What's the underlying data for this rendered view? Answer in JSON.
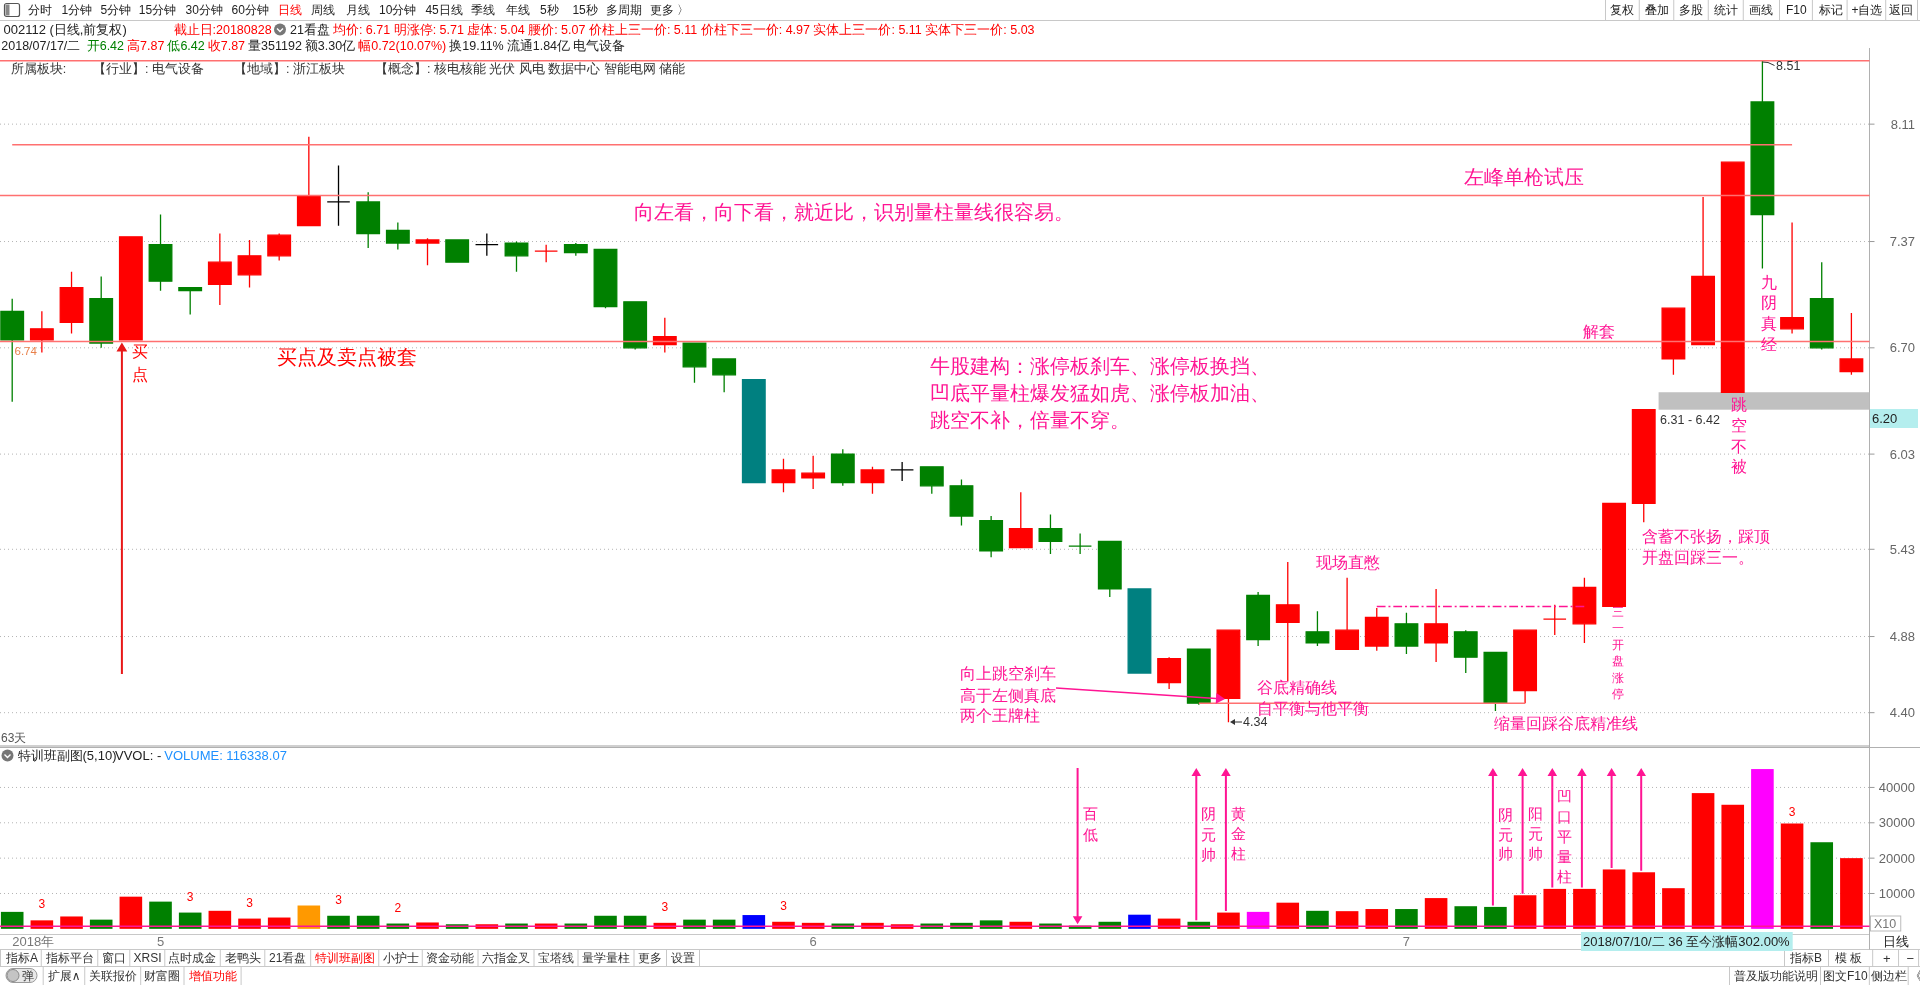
{
  "chart_data": [
    {
      "type": "candlestick",
      "title": "002112 (日线,前复权)",
      "categories": [
        null,
        null,
        null,
        null,
        null,
        null,
        null,
        null,
        null,
        null,
        null,
        null,
        null,
        null,
        null,
        null,
        null,
        null,
        null,
        null,
        null,
        null,
        null,
        null,
        null,
        null,
        null,
        null,
        null,
        null,
        null,
        null,
        null,
        null,
        null,
        null,
        null,
        null,
        null,
        null,
        null,
        null,
        null,
        null,
        null,
        null,
        null,
        null,
        null,
        null,
        null,
        null,
        null,
        null,
        null,
        null,
        null,
        null,
        null,
        null,
        null,
        null,
        null
      ],
      "ohlc": [
        [
          6.93,
          7.01,
          6.36,
          6.75
        ],
        [
          6.75,
          6.93,
          6.67,
          6.82
        ],
        [
          6.86,
          7.18,
          6.79,
          7.08
        ],
        [
          7.01,
          7.15,
          6.7,
          6.73
        ],
        [
          6.75,
          7.4,
          6.75,
          7.4
        ],
        [
          7.35,
          7.54,
          7.06,
          7.12
        ],
        [
          7.08,
          7.08,
          6.91,
          7.06
        ],
        [
          7.1,
          7.42,
          6.97,
          7.24
        ],
        [
          7.16,
          7.38,
          7.08,
          7.28
        ],
        [
          7.28,
          7.42,
          7.25,
          7.41
        ],
        [
          7.47,
          8.03,
          7.47,
          7.66
        ],
        [
          7.62,
          7.85,
          7.47,
          7.62
        ],
        [
          7.62,
          7.68,
          7.33,
          7.42
        ],
        [
          7.44,
          7.49,
          7.32,
          7.36
        ],
        [
          7.36,
          7.39,
          7.22,
          7.38
        ],
        [
          7.38,
          7.38,
          7.24,
          7.24
        ],
        [
          7.35,
          7.42,
          7.28,
          7.35
        ],
        [
          7.36,
          7.37,
          7.18,
          7.28
        ],
        [
          7.31,
          7.35,
          7.24,
          7.31
        ],
        [
          7.35,
          7.36,
          7.28,
          7.3
        ],
        [
          7.32,
          7.32,
          6.95,
          6.96
        ],
        [
          6.99,
          6.99,
          6.69,
          6.7
        ],
        [
          6.72,
          6.89,
          6.67,
          6.77
        ],
        [
          6.73,
          6.73,
          6.48,
          6.58
        ],
        [
          6.63,
          6.63,
          6.42,
          6.53
        ],
        [
          6.5,
          6.5,
          5.85,
          5.85
        ],
        [
          5.85,
          6.0,
          5.79,
          5.93
        ],
        [
          5.88,
          6.02,
          5.81,
          5.91
        ],
        [
          6.03,
          6.06,
          5.83,
          5.85
        ],
        [
          5.85,
          5.95,
          5.78,
          5.93
        ],
        [
          5.93,
          5.98,
          5.86,
          5.93
        ],
        [
          5.95,
          5.95,
          5.78,
          5.83
        ],
        [
          5.83,
          5.87,
          5.58,
          5.64
        ],
        [
          5.61,
          5.64,
          5.38,
          5.42
        ],
        [
          5.44,
          5.79,
          5.44,
          5.56
        ],
        [
          5.56,
          5.65,
          5.4,
          5.48
        ],
        [
          5.45,
          5.53,
          5.4,
          5.45
        ],
        [
          5.48,
          5.48,
          5.13,
          5.18
        ],
        [
          5.18,
          5.18,
          4.65,
          4.65
        ],
        [
          4.59,
          4.75,
          4.55,
          4.74
        ],
        [
          4.8,
          4.8,
          4.45,
          4.46
        ],
        [
          4.49,
          4.92,
          4.34,
          4.92
        ],
        [
          5.14,
          5.16,
          4.82,
          4.86
        ],
        [
          4.97,
          5.35,
          4.6,
          5.08
        ],
        [
          4.91,
          5.04,
          4.82,
          4.84
        ],
        [
          4.8,
          5.25,
          4.8,
          4.92
        ],
        [
          4.82,
          5.06,
          4.79,
          5.0
        ],
        [
          4.96,
          5.03,
          4.77,
          4.82
        ],
        [
          4.84,
          5.18,
          4.72,
          4.96
        ],
        [
          4.91,
          4.92,
          4.65,
          4.75
        ],
        [
          4.78,
          4.78,
          4.41,
          4.46
        ],
        [
          4.54,
          4.92,
          4.46,
          4.92
        ],
        [
          4.99,
          5.08,
          4.89,
          4.99
        ],
        [
          4.96,
          5.25,
          4.84,
          5.19
        ],
        [
          5.07,
          5.72,
          5.07,
          5.72
        ],
        [
          5.72,
          6.31,
          5.6,
          6.31
        ],
        [
          6.63,
          6.95,
          6.53,
          6.95
        ],
        [
          6.72,
          7.65,
          6.72,
          7.15
        ],
        [
          6.42,
          7.87,
          6.42,
          7.87
        ],
        [
          8.25,
          8.51,
          7.2,
          7.54
        ],
        [
          6.82,
          7.49,
          6.79,
          6.89
        ],
        [
          7.01,
          7.24,
          6.69,
          6.7
        ],
        [
          6.55,
          6.92,
          6.53,
          6.63
        ]
      ],
      "colors": [
        "#008000",
        "#ff0000",
        "#ff0000",
        "#008000",
        "#ff0000",
        "#008000",
        "#008000",
        "#ff0000",
        "#ff0000",
        "#ff0000",
        "#ff0000",
        "#000000",
        "#008000",
        "#008000",
        "#ff0000",
        "#008000",
        "#000000",
        "#008000",
        "#ff0000",
        "#008000",
        "#008000",
        "#008000",
        "#ff0000",
        "#008000",
        "#008000",
        "#008080",
        "#ff0000",
        "#ff0000",
        "#008000",
        "#ff0000",
        "#000000",
        "#008000",
        "#008000",
        "#008000",
        "#ff0000",
        "#008000",
        "#008000",
        "#008000",
        "#008080",
        "#ff0000",
        "#008000",
        "#ff0000",
        "#008000",
        "#ff0000",
        "#008000",
        "#ff0000",
        "#ff0000",
        "#008000",
        "#ff0000",
        "#008000",
        "#008000",
        "#ff0000",
        "#ff0000",
        "#ff0000",
        "#ff0000",
        "#ff0000",
        "#ff0000",
        "#ff0000",
        "#ff0000",
        "#008000",
        "#ff0000",
        "#008000",
        "#ff0000"
      ],
      "ylim": [
        4.19,
        8.59
      ],
      "yticks": [
        {
          "value": 4.4,
          "label": "4.40"
        },
        4.88,
        5.43,
        6.03,
        {
          "value": 6.7,
          "label": "6.70"
        },
        7.37,
        8.11
      ],
      "grid": "y",
      "tick_labels": "y",
      "ref_lines": [
        {
          "axis": "y",
          "value": 8.51,
          "color": "#ff7070"
        },
        {
          "axis": "y",
          "value": 7.66,
          "label": "左峰单枪试压",
          "color": "#ff7070"
        },
        {
          "axis": "y",
          "value": 6.74,
          "label": "6.74",
          "color": "#ff7070"
        }
      ],
      "bands": [
        {
          "axis": "y",
          "from": 6.31,
          "to": 6.42,
          "label": "6.31 - 6.42",
          "color": "#c0c0c0"
        }
      ],
      "series": [
        {
          "type": "line",
          "color": "#ff7070",
          "values": [
            7.98,
            7.98,
            7.98,
            7.98,
            7.98,
            7.98,
            7.98,
            7.98,
            7.98,
            7.98,
            7.98,
            7.98,
            7.98,
            7.98,
            7.98,
            7.98,
            7.98,
            7.98,
            7.98,
            7.98,
            7.98,
            7.98,
            7.98,
            7.98,
            7.98,
            7.98,
            7.98,
            7.98,
            7.98,
            7.98,
            7.98,
            7.98,
            7.98,
            7.98,
            7.98,
            7.98,
            7.98,
            7.98,
            7.98,
            7.98,
            7.98,
            7.98,
            7.98,
            7.98,
            7.98,
            7.98,
            7.98,
            7.98,
            7.98,
            7.98,
            7.98,
            7.98,
            7.98,
            7.98,
            7.98,
            7.98,
            7.98,
            7.98,
            7.98,
            7.98,
            7.98,
            null,
            null
          ]
        },
        {
          "type": "line",
          "color": "#ff7070",
          "values": [
            null,
            null,
            null,
            null,
            null,
            null,
            null,
            null,
            null,
            null,
            null,
            null,
            null,
            null,
            null,
            null,
            null,
            null,
            null,
            null,
            null,
            null,
            null,
            null,
            null,
            null,
            null,
            null,
            null,
            null,
            null,
            null,
            null,
            null,
            null,
            null,
            null,
            null,
            null,
            null,
            4.46,
            4.46,
            4.46,
            4.46,
            4.46,
            4.46,
            4.46,
            4.46,
            4.46,
            4.46,
            4.46,
            4.46,
            null,
            null,
            null,
            null,
            null,
            null,
            null,
            null,
            null,
            null,
            null
          ]
        },
        {
          "type": "line",
          "color": "#ff1493",
          "line_style": "dashed",
          "values": [
            null,
            null,
            null,
            null,
            null,
            null,
            null,
            null,
            null,
            null,
            null,
            null,
            null,
            null,
            null,
            null,
            null,
            null,
            null,
            null,
            null,
            null,
            null,
            null,
            null,
            null,
            null,
            null,
            null,
            null,
            null,
            null,
            null,
            null,
            null,
            null,
            null,
            null,
            null,
            null,
            null,
            null,
            null,
            null,
            null,
            null,
            5.07,
            5.07,
            5.07,
            5.07,
            5.07,
            5.07,
            5.07,
            5.07,
            null,
            null,
            null,
            null,
            null,
            null,
            null,
            null,
            null
          ]
        }
      ],
      "annotations": [
        "分时",
        "1分钟",
        "5分钟",
        "15分钟",
        "30分钟",
        "60分钟",
        "日线",
        "周线",
        "月线",
        "10分钟",
        "45日线",
        "季线",
        "年线",
        "5秒",
        "15秒",
        "多周期",
        "更多 〉",
        "复权",
        "叠加",
        "多股",
        "统计",
        "画线",
        "F10",
        "标记",
        "+自选",
        "返回",
        "截止日:20180828",
        "21看盘",
        "均价: 6.71 明涨停: 5.71 虚体: 5.04 腰价: 5.07 价柱上三一价: 5.11 价柱下三一价: 4.97 实体上三一价: 5.11 实体下三一价: 5.03",
        "2018/07/17/二",
        "开6.42",
        "高7.87",
        "低6.42",
        "收7.87",
        "量351192",
        "额3.30亿",
        "幅0.72(10.07%)",
        "换19.11%",
        "流通1.84亿",
        "电气设备",
        "所属板块:",
        "【行业】: 电气设备",
        "【地域】: 浙江板块",
        "【概念】: 核电核能 光伏 风电 数据中心 智能电网 储能",
        "买点",
        "买点及卖点被套",
        "向左看，向下看，就近比，识别量柱量线很容易。",
        "牛股建构：涨停板刹车、涨停板换挡、",
        "凹底平量柱爆发猛如虎、涨停板加油、",
        "跳空不补，倍量不穿。",
        "向上跳空刹车",
        "高于左侧真底",
        "两个王牌柱",
        "4.34",
        "谷底精确线",
        "自平衡与他平衡",
        "现场直憋",
        "缩量回踩谷底精准线",
        "三一开盘涨停",
        "含蓄不张扬，踩顶",
        "开盘回踩三一。",
        "跳空不被",
        "九阴真经",
        "解套",
        "8.51",
        "6.20",
        "63天"
      ]
    },
    {
      "type": "bar",
      "title": "特训班副图(5,10)",
      "categories": [
        null,
        null,
        null,
        null,
        null,
        "5",
        null,
        null,
        null,
        null,
        null,
        null,
        null,
        null,
        null,
        null,
        null,
        null,
        null,
        null,
        null,
        null,
        null,
        null,
        null,
        null,
        null,
        "6",
        null,
        null,
        null,
        null,
        null,
        null,
        null,
        null,
        null,
        null,
        null,
        null,
        null,
        null,
        null,
        null,
        null,
        null,
        null,
        "7",
        null,
        null,
        null,
        null,
        null,
        null,
        null,
        null,
        null,
        null,
        null,
        null,
        null,
        null,
        null
      ],
      "values": [
        4800,
        2400,
        3500,
        2600,
        9100,
        7700,
        4600,
        5100,
        2900,
        3200,
        6600,
        3700,
        3700,
        1500,
        1800,
        1300,
        1300,
        1500,
        1500,
        1500,
        3700,
        3700,
        1700,
        2600,
        2600,
        3900,
        2000,
        1700,
        1500,
        1700,
        1300,
        1500,
        1700,
        2400,
        2000,
        1500,
        900,
        2000,
        4000,
        2900,
        2000,
        4600,
        4800,
        7400,
        5100,
        5000,
        5600,
        5600,
        8700,
        6400,
        6200,
        9500,
        11300,
        11300,
        16800,
        16000,
        11500,
        38400,
        35100,
        45200,
        29800,
        24500,
        20000
      ],
      "colors": [
        "#008000",
        "#ff0000",
        "#ff0000",
        "#008000",
        "#ff0000",
        "#008000",
        "#008000",
        "#ff0000",
        "#ff0000",
        "#ff0000",
        "#ff9900",
        "#008000",
        "#008000",
        "#008000",
        "#ff0000",
        "#008000",
        "#ff0000",
        "#008000",
        "#ff0000",
        "#008000",
        "#008000",
        "#008000",
        "#ff0000",
        "#008000",
        "#008000",
        "#0000ff",
        "#ff0000",
        "#ff0000",
        "#008000",
        "#ff0000",
        "#ff0000",
        "#008000",
        "#008000",
        "#008000",
        "#ff0000",
        "#008000",
        "#008000",
        "#008000",
        "#0000ff",
        "#ff0000",
        "#008000",
        "#ff0000",
        "#ff00ff",
        "#ff0000",
        "#008000",
        "#ff0000",
        "#ff0000",
        "#008000",
        "#ff0000",
        "#008000",
        "#008000",
        "#ff0000",
        "#ff0000",
        "#ff0000",
        "#ff0000",
        "#ff0000",
        "#ff0000",
        "#ff0000",
        "#ff0000",
        "#ff00ff",
        "#ff0000",
        "#008000",
        "#ff0000"
      ],
      "ylim": [
        0,
        51300
      ],
      "yticks": [
        10000,
        20000,
        30000,
        40000
      ],
      "grid": "y",
      "ylabel": "X10",
      "ref_lines": [
        {
          "axis": "y",
          "value": 700,
          "color": "#ff1493"
        }
      ],
      "annotations": [
        "VVOL: -",
        "VOLUME: 116338.07",
        "3",
        "3",
        "3",
        "3",
        "2",
        "3",
        "3",
        "3",
        "百低",
        "阴元帅",
        "黄金柱",
        "阴元帅",
        {
          "text": "阳元帅",
          "y": 9500
        },
        {
          "text": "凹口平量柱",
          "y": 11300
        },
        "2018/07/10/二 36 至今涨幅302.00%",
        "日线",
        "指标A",
        "指标平台",
        "窗口",
        "XRSI",
        "点时成金",
        "老鸭头",
        "21看盘",
        "特训班副图",
        "小护士",
        "资金动能",
        "六指金叉",
        "宝塔线",
        "量学量柱",
        "更多",
        "设置",
        "指标B",
        "模 板",
        "+",
        "−",
        "弹",
        "扩展∧",
        "关联报价",
        "财富圈",
        "增值功能",
        "普及版功能说明",
        "图文F10",
        "侧边栏",
        "《",
        "2018年"
      ]
    }
  ]
}
